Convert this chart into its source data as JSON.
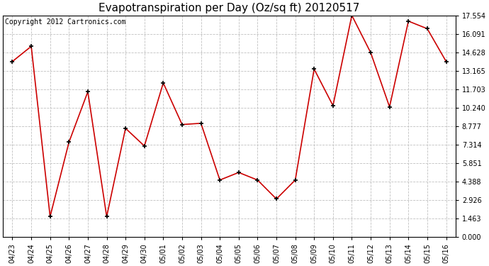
{
  "title": "Evapotranspiration per Day (Oz/sq ft) 20120517",
  "copyright": "Copyright 2012 Cartronics.com",
  "x_labels": [
    "04/23",
    "04/24",
    "04/25",
    "04/26",
    "04/27",
    "04/28",
    "04/29",
    "04/30",
    "05/01",
    "05/02",
    "05/03",
    "05/04",
    "05/05",
    "05/06",
    "05/07",
    "05/08",
    "05/09",
    "05/10",
    "05/11",
    "05/12",
    "05/13",
    "05/14",
    "05/15",
    "05/16"
  ],
  "y_values": [
    13.9,
    15.1,
    1.6,
    7.5,
    11.5,
    1.6,
    8.6,
    7.2,
    12.2,
    8.9,
    9.0,
    4.5,
    5.1,
    4.5,
    3.0,
    4.5,
    13.3,
    10.4,
    17.554,
    14.6,
    10.3,
    17.1,
    16.5,
    13.9
  ],
  "line_color": "#cc0000",
  "marker_color": "#000000",
  "bg_color": "#ffffff",
  "plot_bg_color": "#ffffff",
  "grid_color": "#c0c0c0",
  "y_ticks": [
    0.0,
    1.463,
    2.926,
    4.388,
    5.851,
    7.314,
    8.777,
    10.24,
    11.703,
    13.165,
    14.628,
    16.091,
    17.554
  ],
  "ylim": [
    0.0,
    17.554
  ],
  "title_fontsize": 11,
  "copyright_fontsize": 7,
  "tick_fontsize": 7,
  "figwidth": 6.9,
  "figheight": 3.75
}
